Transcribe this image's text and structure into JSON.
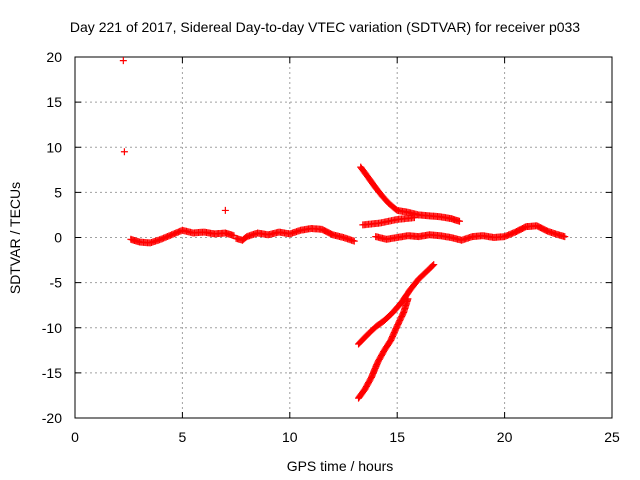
{
  "chart_data": {
    "type": "scatter",
    "title": "Day 221 of 2017, Sidereal Day-to-day VTEC variation (SDTVAR) for receiver p033",
    "xlabel": "GPS time / hours",
    "ylabel": "SDTVAR / TECUs",
    "xlim": [
      0,
      25
    ],
    "ylim": [
      -20,
      20
    ],
    "xticks": [
      0,
      5,
      10,
      15,
      20,
      25
    ],
    "yticks": [
      -20,
      -15,
      -10,
      -5,
      0,
      5,
      10,
      15,
      20
    ],
    "grid": true,
    "marker": "plus",
    "color": "#ff0000",
    "segments": [
      {
        "x": [
          2.6,
          3.0,
          3.5,
          4.0,
          4.5,
          5.0,
          5.5,
          6.0,
          6.5,
          7.0,
          7.4
        ],
        "y": [
          -0.2,
          -0.5,
          -0.6,
          -0.2,
          0.3,
          0.8,
          0.5,
          0.6,
          0.4,
          0.5,
          0.2
        ]
      },
      {
        "x": [
          7.5,
          7.8,
          8.0,
          8.5,
          9.0,
          9.5,
          10.0,
          10.5,
          11.0,
          11.5,
          12.0,
          12.5,
          13.0
        ],
        "y": [
          -0.1,
          -0.3,
          0.1,
          0.5,
          0.3,
          0.6,
          0.4,
          0.8,
          1.0,
          0.9,
          0.3,
          0.0,
          -0.4
        ]
      },
      {
        "x": [
          13.4,
          13.8,
          14.2,
          14.6,
          15.0,
          15.4,
          15.8
        ],
        "y": [
          1.4,
          1.5,
          1.6,
          1.8,
          2.0,
          2.1,
          2.2
        ]
      },
      {
        "x": [
          14.0,
          14.5,
          15.0,
          15.5,
          16.0,
          16.5,
          17.0,
          17.5,
          18.0,
          18.5,
          19.0,
          19.5,
          20.0,
          20.5,
          21.0,
          21.5,
          22.0,
          22.5,
          22.8
        ],
        "y": [
          0.1,
          -0.2,
          0.0,
          0.2,
          0.1,
          0.3,
          0.2,
          0.0,
          -0.3,
          0.1,
          0.2,
          0.0,
          0.1,
          0.6,
          1.2,
          1.3,
          0.7,
          0.3,
          0.1
        ]
      },
      {
        "x": [
          13.3,
          13.7,
          14.0,
          14.3,
          14.6,
          15.0,
          15.5,
          16.0,
          16.5,
          17.0,
          17.5,
          17.9
        ],
        "y": [
          7.8,
          6.5,
          5.5,
          4.6,
          3.8,
          3.0,
          2.8,
          2.5,
          2.4,
          2.3,
          2.1,
          1.8
        ]
      },
      {
        "x": [
          13.2,
          13.6,
          14.0,
          14.4,
          14.8,
          15.2,
          15.6,
          16.0,
          16.4,
          16.7
        ],
        "y": [
          -11.8,
          -10.8,
          -9.9,
          -9.2,
          -8.3,
          -7.2,
          -5.8,
          -4.6,
          -3.7,
          -3.0
        ]
      },
      {
        "x": [
          13.2,
          13.5,
          13.8,
          14.1,
          14.4,
          14.7,
          15.0,
          15.3,
          15.5
        ],
        "y": [
          -17.8,
          -16.8,
          -15.5,
          -13.8,
          -12.5,
          -11.4,
          -9.8,
          -8.3,
          -6.8
        ]
      }
    ],
    "isolated_points": [
      {
        "x": 2.25,
        "y": 19.6
      },
      {
        "x": 2.3,
        "y": 9.5
      },
      {
        "x": 7.0,
        "y": 3.0
      }
    ]
  }
}
